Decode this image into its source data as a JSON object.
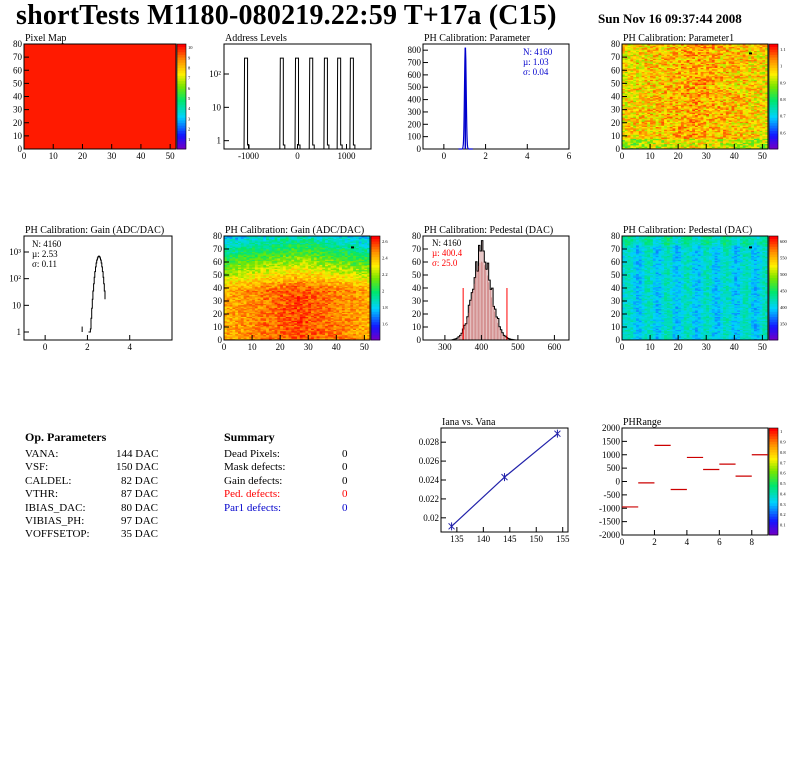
{
  "header": {
    "title": "shortTests M1180-080219.22:59 T+17a (C15)",
    "date": "Sun Nov 16 09:37:44 2008"
  },
  "colors": {
    "red": "#ff0000",
    "blue": "#0000cc",
    "map_red": "#ff1a00",
    "hist_fill": "#e8c8c8"
  },
  "op_parameters": {
    "title": "Op. Parameters",
    "items": [
      {
        "name": "VANA:",
        "value": "144 DAC"
      },
      {
        "name": "VSF:",
        "value": "150 DAC"
      },
      {
        "name": "CALDEL:",
        "value": "82 DAC"
      },
      {
        "name": "VTHR:",
        "value": "87 DAC"
      },
      {
        "name": "IBIAS_DAC:",
        "value": "80 DAC"
      },
      {
        "name": "VIBIAS_PH:",
        "value": "97 DAC"
      },
      {
        "name": "VOFFSETOP:",
        "value": "35 DAC"
      }
    ]
  },
  "summary": {
    "title": "Summary",
    "items": [
      {
        "name": "Dead Pixels:",
        "value": "0",
        "color": "#000000"
      },
      {
        "name": "Mask defects:",
        "value": "0",
        "color": "#000000"
      },
      {
        "name": "Gain defects:",
        "value": "0",
        "color": "#000000"
      },
      {
        "name": "Ped. defects:",
        "value": "0",
        "color": "#ff0000"
      },
      {
        "name": "Par1 defects:",
        "value": "0",
        "color": "#0000cc"
      }
    ]
  },
  "chart_data": [
    {
      "id": "pixel_map",
      "type": "heatmap",
      "title": "Pixel Map",
      "xlim": [
        0,
        52
      ],
      "ylim": [
        0,
        80
      ],
      "xticks": [
        "0",
        "10",
        "20",
        "30",
        "40",
        "50"
      ],
      "yticks": [
        "0",
        "10",
        "20",
        "30",
        "40",
        "50",
        "60",
        "70",
        "80"
      ],
      "palette_labels": [
        "1",
        "2",
        "3",
        "4",
        "5",
        "6",
        "7",
        "8",
        "9",
        "10"
      ],
      "uniform_value": 10
    },
    {
      "id": "address_levels",
      "type": "line",
      "title": "Address Levels",
      "xlim": [
        -1500,
        1500
      ],
      "ylog": true,
      "xticks": [
        "-1000",
        "0",
        "1000"
      ],
      "yticks": [
        "1",
        "10",
        "10²"
      ],
      "peaks": [
        -1050,
        -320,
        -10,
        280,
        580,
        850,
        1110
      ],
      "peak_height": 300
    },
    {
      "id": "ph_cal_parameter",
      "type": "bar",
      "title": "PH Calibration: Parameter",
      "xlim": [
        -1,
        6
      ],
      "ylim": [
        0,
        850
      ],
      "xticks": [
        "0",
        "2",
        "4",
        "6"
      ],
      "yticks": [
        "0",
        "100",
        "200",
        "300",
        "400",
        "500",
        "600",
        "700",
        "800"
      ],
      "stats": {
        "n": "N: 4160",
        "mean": "µ: 1.03",
        "sigma": "σ: 0.04"
      },
      "mean": 1.03,
      "sigma": 0.04,
      "peak": 820
    },
    {
      "id": "ph_cal_parameter1",
      "type": "heatmap",
      "title": "PH Calibration: Parameter1",
      "xlim": [
        0,
        52
      ],
      "ylim": [
        0,
        80
      ],
      "xticks": [
        "0",
        "10",
        "20",
        "30",
        "40",
        "50"
      ],
      "yticks": [
        "0",
        "10",
        "20",
        "30",
        "40",
        "50",
        "60",
        "70",
        "80"
      ],
      "palette_labels": [
        "0.6",
        "0.7",
        "0.8",
        "0.9",
        "1",
        "1.1"
      ],
      "zlim": [
        0.55,
        1.15
      ]
    },
    {
      "id": "ph_cal_gain_hist",
      "type": "line",
      "title": "PH Calibration: Gain (ADC/DAC)",
      "xlim": [
        -1,
        6
      ],
      "ylog": true,
      "xticks": [
        "0",
        "2",
        "4"
      ],
      "yticks": [
        "1",
        "10",
        "10²",
        "10³"
      ],
      "stats": {
        "n": "N: 4160",
        "mean": "µ: 2.53",
        "sigma": "σ: 0.11"
      },
      "mean": 2.53,
      "sigma": 0.11,
      "peak": 700
    },
    {
      "id": "ph_cal_gain_map",
      "type": "heatmap",
      "title": "PH Calibration: Gain (ADC/DAC)",
      "xlim": [
        0,
        52
      ],
      "ylim": [
        0,
        80
      ],
      "xticks": [
        "0",
        "10",
        "20",
        "30",
        "40",
        "50"
      ],
      "yticks": [
        "0",
        "10",
        "20",
        "30",
        "40",
        "50",
        "60",
        "70",
        "80"
      ],
      "palette_labels": [
        "1.6",
        "1.8",
        "2",
        "2.2",
        "2.4",
        "2.6"
      ],
      "zlim": [
        1.5,
        2.7
      ]
    },
    {
      "id": "ph_cal_pedestal_hist",
      "type": "bar",
      "title": "PH Calibration: Pedestal (DAC)",
      "xlim": [
        240,
        640
      ],
      "ylim": [
        0,
        80
      ],
      "xticks": [
        "300",
        "400",
        "500",
        "600"
      ],
      "yticks": [
        "0",
        "10",
        "20",
        "30",
        "40",
        "50",
        "60",
        "70",
        "80"
      ],
      "stats": {
        "n": "N: 4160",
        "mean": "µ: 400.4",
        "sigma": "σ: 25.0"
      },
      "mean": 400.4,
      "sigma": 25.0,
      "peak": 67,
      "cut_lines": [
        350,
        470
      ]
    },
    {
      "id": "ph_cal_pedestal_map",
      "type": "heatmap",
      "title": "PH Calibration: Pedestal (DAC)",
      "xlim": [
        0,
        52
      ],
      "ylim": [
        0,
        80
      ],
      "xticks": [
        "0",
        "10",
        "20",
        "30",
        "40",
        "50"
      ],
      "yticks": [
        "0",
        "10",
        "20",
        "30",
        "40",
        "50",
        "60",
        "70",
        "80"
      ],
      "palette_labels": [
        "350",
        "400",
        "450",
        "500",
        "550",
        "600"
      ],
      "zlim": [
        330,
        620
      ]
    },
    {
      "id": "iana_vs_vana",
      "type": "line",
      "title": "Iana vs. Vana",
      "xlim": [
        132,
        156
      ],
      "ylim": [
        0.0185,
        0.0295
      ],
      "xticks": [
        "135",
        "140",
        "145",
        "150",
        "155"
      ],
      "yticks": [
        "0.02",
        "0.022",
        "0.024",
        "0.026",
        "0.028"
      ],
      "x": [
        134,
        144,
        154
      ],
      "y": [
        0.0191,
        0.0243,
        0.0289
      ]
    },
    {
      "id": "ph_range",
      "type": "scatter",
      "title": "PHRange",
      "xlim": [
        0,
        9
      ],
      "ylim": [
        -2000,
        2000
      ],
      "xticks": [
        "0",
        "2",
        "4",
        "6",
        "8"
      ],
      "yticks": [
        "2000",
        "1500",
        "1000",
        "500",
        "0",
        "-500",
        "-1000",
        "-1500",
        "-2000"
      ],
      "palette_labels": [
        "0.1",
        "0.2",
        "0.3",
        "0.4",
        "0.5",
        "0.6",
        "0.7",
        "0.8",
        "0.9",
        "1"
      ],
      "x": [
        0.5,
        1.5,
        2.5,
        3.5,
        4.5,
        5.5,
        6.5,
        7.5,
        8.5
      ],
      "y": [
        -950,
        -50,
        1350,
        -300,
        900,
        450,
        650,
        200,
        1000
      ]
    }
  ]
}
